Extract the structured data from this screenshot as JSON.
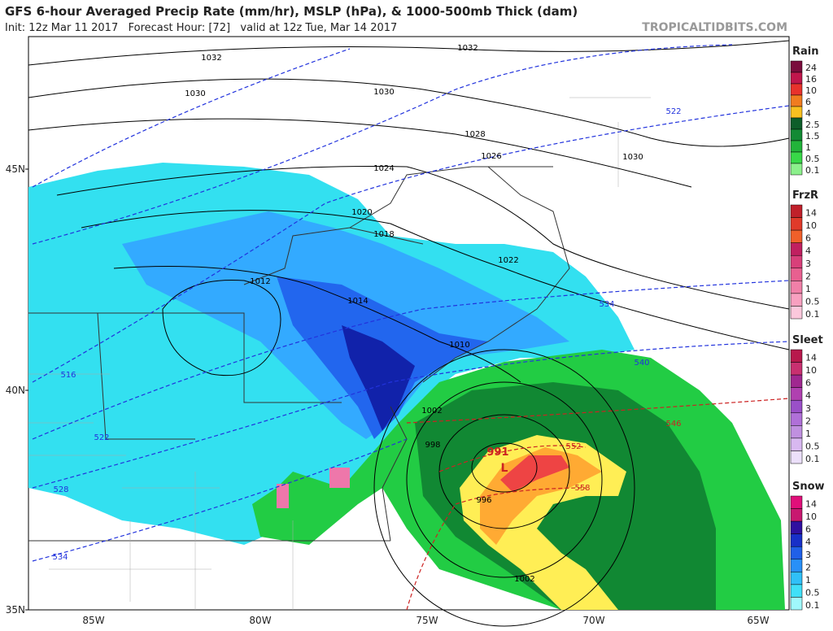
{
  "header": {
    "title": "GFS 6-hour Averaged Precip Rate (mm/hr), MSLP (hPa), & 1000-500mb Thick (dam)",
    "subtitle": "Init: 12z Mar 11 2017   Forecast Hour: [72]   valid at 12z Tue, Mar 14 2017",
    "site": "TROPICALTIDBITS.COM"
  },
  "legend": [
    {
      "title": "Rain",
      "labels": [
        24,
        16,
        10,
        6,
        4,
        2.5,
        1.5,
        1,
        0.5,
        0.1
      ]
    },
    {
      "title": "FrzR",
      "labels": [
        14,
        10,
        6,
        4,
        3,
        2,
        1,
        0.5,
        0.1
      ]
    },
    {
      "title": "Sleet",
      "labels": [
        14,
        10,
        6,
        4,
        3,
        2,
        1,
        0.5,
        0.1
      ]
    },
    {
      "title": "Snow",
      "labels": [
        14,
        10,
        6,
        4,
        3,
        2,
        1,
        0.5,
        0.1
      ]
    }
  ],
  "axes": {
    "lon_labels": [
      "85W",
      "80W",
      "75W",
      "70W",
      "65W"
    ],
    "lat_labels": [
      "45N",
      "40N",
      "35N"
    ]
  },
  "isobar_labels": [
    1032,
    1032,
    1030,
    1030,
    1028,
    1026,
    1030,
    1024,
    1022,
    1020,
    1018,
    1014,
    1012,
    1010,
    1002,
    998,
    996,
    1002
  ],
  "thickness_labels": [
    522,
    534,
    540,
    546,
    552,
    558,
    516,
    522,
    528,
    534
  ],
  "low": {
    "pressure": 991,
    "symbol": "L"
  }
}
